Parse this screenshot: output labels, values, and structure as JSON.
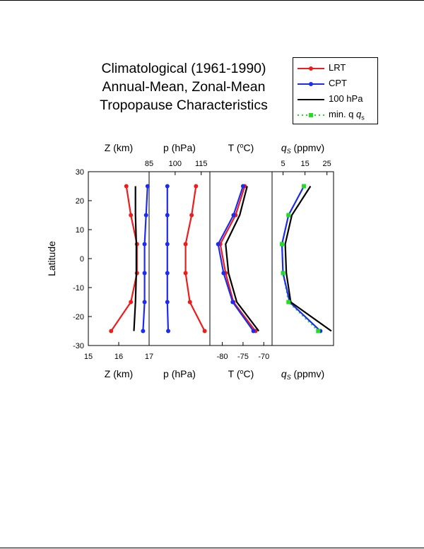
{
  "title_lines": [
    "Climatological (1961-1990)",
    "Annual-Mean, Zonal-Mean",
    "Tropopause Characteristics"
  ],
  "legend": [
    {
      "name": "LRT",
      "color": "#ee1c1c",
      "style": "solid",
      "marker": "circle"
    },
    {
      "name": "CPT",
      "color": "#1c2cee",
      "style": "solid",
      "marker": "circle"
    },
    {
      "name": "100 hPa",
      "color": "#000000",
      "style": "solid",
      "marker": "none"
    },
    {
      "name": "min. q",
      "subscript": "s",
      "color": "#22dd22",
      "style": "dotted",
      "marker": "square"
    }
  ],
  "ylabel": "Latitude",
  "chart_data": {
    "type": "line",
    "y_axis": {
      "label": "Latitude",
      "ylim": [
        -30,
        30
      ],
      "ticks": [
        30,
        20,
        10,
        0,
        -10,
        -20,
        -30
      ]
    },
    "latitudes": [
      25,
      15,
      5,
      -5,
      -15,
      -25
    ],
    "panels": [
      {
        "id": "z",
        "top_label": "Z (km)",
        "bottom_label": "Z (km)",
        "xlim": [
          15,
          17
        ],
        "bottom_ticks": [
          "15",
          "16",
          "17"
        ],
        "bottom_tick_values": [
          15,
          16,
          17
        ],
        "top_ticks": [],
        "series": [
          {
            "name": "LRT",
            "x": [
              16.25,
              16.4,
              16.6,
              16.6,
              16.4,
              15.75
            ]
          },
          {
            "name": "CPT",
            "x": [
              16.95,
              16.9,
              16.85,
              16.85,
              16.85,
              16.8
            ]
          },
          {
            "name": "100 hPa",
            "x": [
              16.55,
              16.55,
              16.58,
              16.58,
              16.55,
              16.5
            ]
          }
        ]
      },
      {
        "id": "p",
        "top_label": "p (hPa)",
        "bottom_label": "p (hPa)",
        "xlim": [
          85,
          120
        ],
        "top_ticks": [
          "85",
          "100",
          "115"
        ],
        "top_tick_values": [
          85,
          100,
          115
        ],
        "bottom_ticks": [],
        "series": [
          {
            "name": "LRT",
            "x": [
              112,
              109.5,
              106,
              106,
              108.5,
              117
            ]
          },
          {
            "name": "CPT",
            "x": [
              95.5,
              95.5,
              95.5,
              95.5,
              95.5,
              96
            ]
          }
        ]
      },
      {
        "id": "t",
        "top_label": "T (",
        "top_label_sup": "o",
        "top_label_end": "C)",
        "bottom_label": "T (",
        "bottom_label_sup": "o",
        "bottom_label_end": "C)",
        "xlim": [
          -83,
          -68
        ],
        "bottom_ticks": [
          "-80",
          "-75",
          "-70"
        ],
        "bottom_tick_values": [
          -80,
          -75,
          -70
        ],
        "top_ticks": [],
        "series": [
          {
            "name": "LRT",
            "x": [
              -74.6,
              -76.8,
              -80.5,
              -79.2,
              -77.3,
              -72
            ]
          },
          {
            "name": "CPT",
            "x": [
              -75,
              -77.3,
              -81,
              -79.7,
              -77.5,
              -72.5
            ]
          },
          {
            "name": "100 hPa",
            "x": [
              -74,
              -75.8,
              -79.2,
              -78.5,
              -76.5,
              -71.2
            ]
          }
        ]
      },
      {
        "id": "q",
        "top_label": "q",
        "top_label_sub": "S",
        "top_label_end": " (ppmv)",
        "bottom_label": "q",
        "bottom_label_sub": "S",
        "bottom_label_end": " (ppmv)",
        "xlim": [
          0,
          28
        ],
        "top_ticks": [
          "5",
          "15",
          "25"
        ],
        "top_tick_values": [
          5,
          15,
          25
        ],
        "bottom_ticks": [],
        "series": [
          {
            "name": "min. q_s",
            "x": [
              14.5,
              7.5,
              4.5,
              5,
              7.5,
              21
            ]
          },
          {
            "name": "CPT",
            "x": [
              14.5,
              7.5,
              4.5,
              5,
              8,
              22
            ]
          },
          {
            "name": "100 hPa",
            "x": [
              17.5,
              9,
              6,
              6.5,
              8.5,
              27
            ]
          }
        ]
      }
    ]
  }
}
